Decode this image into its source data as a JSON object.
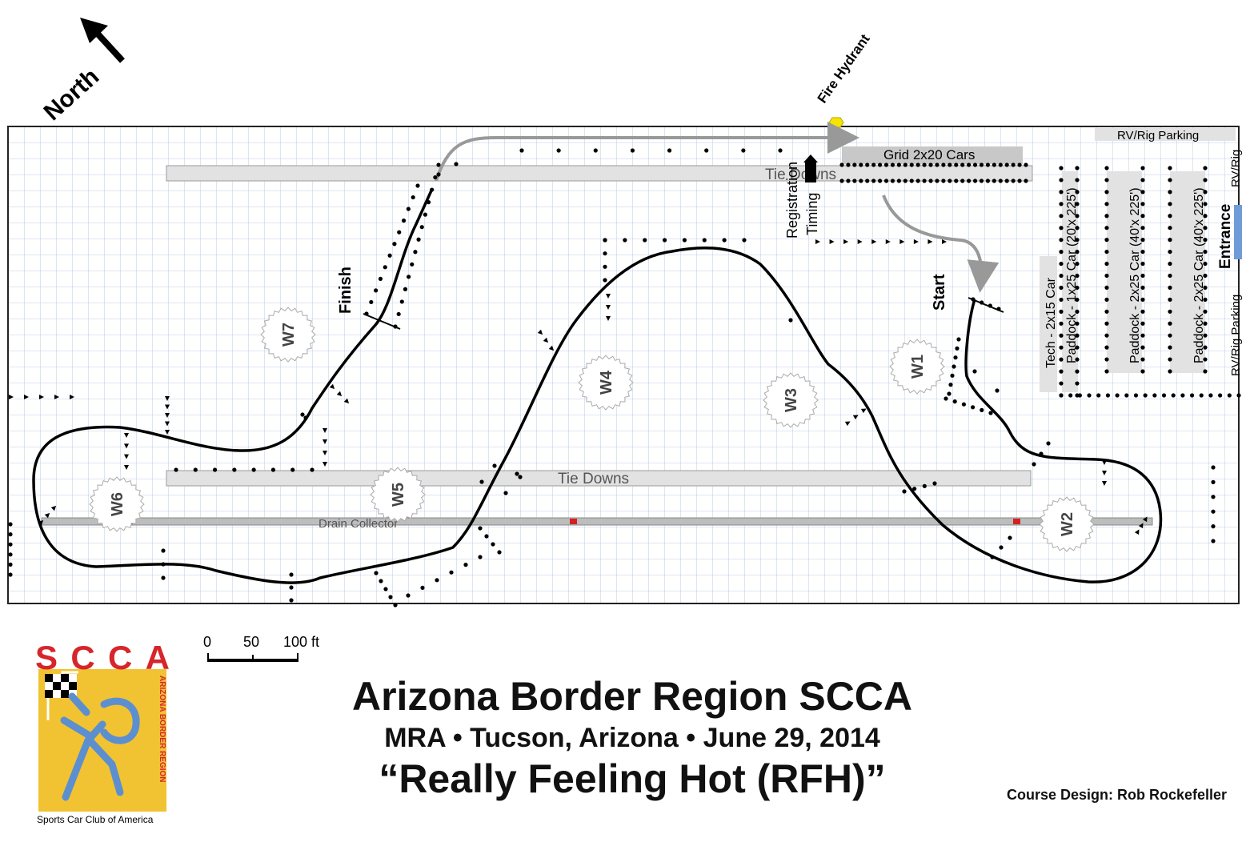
{
  "north_label": "North",
  "fire_hydrant": "Fire Hydrant",
  "grid": "Grid 2x20 Cars",
  "tie_downs_top": "Tie Downs",
  "tie_downs_mid": "Tie Downs",
  "drain_collector": "Drain Collector",
  "rv_parking_top": "RV/Rig Parking",
  "rv_right_top": "RV/Rig",
  "rv_right_bottom": "RV/Rig Parking",
  "entrance": "Entrance",
  "registration": "Registration",
  "timing": "Timing",
  "finish": "Finish",
  "start": "Start",
  "tech": "Tech - 2x15 Car",
  "paddock1": "Paddock - 1x25 Car (20'x 225')",
  "paddock2": "Paddock - 2x25 Car (40'x 225')",
  "paddock3": "Paddock - 2x25 Car (40'x 225')",
  "workers": [
    "W1",
    "W2",
    "W3",
    "W4",
    "W5",
    "W6",
    "W7"
  ],
  "scale": {
    "zero": "0",
    "fifty": "50",
    "hundred": "100 ft"
  },
  "logo": {
    "text": "SCCA",
    "side": "ARIZONA BORDER REGION",
    "bottom": "Sports Car Club of America"
  },
  "title": {
    "line1": "Arizona Border Region SCCA",
    "line2": "MRA • Tucson, Arizona • June 29, 2014",
    "line3": "“Really Feeling Hot (RFH)”"
  },
  "credit": "Course Design:  Rob Rockefeller",
  "colors": {
    "logo_red": "#d7262b",
    "logo_yellow": "#f1c231",
    "logo_blue": "#5b8fd0",
    "grid": "#a9bedf",
    "box": "#e2e2e2",
    "hydrant": "#f5e400",
    "entrance": "#6f9bd8",
    "drain_marker": "#d62020"
  }
}
